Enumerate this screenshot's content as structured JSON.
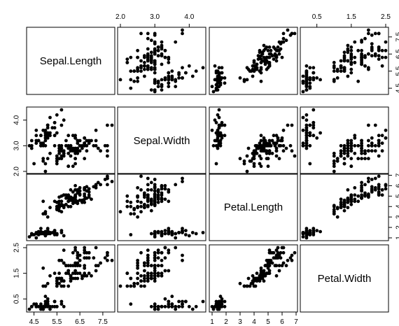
{
  "chart_data": {
    "type": "scatter",
    "plot_type": "scatterplot-matrix",
    "point_color": "#000000",
    "variables": [
      {
        "name": "Sepal.Length",
        "range": [
          4.3,
          7.9
        ]
      },
      {
        "name": "Sepal.Width",
        "range": [
          2.0,
          4.4
        ]
      },
      {
        "name": "Petal.Length",
        "range": [
          1.0,
          6.9
        ]
      },
      {
        "name": "Petal.Width",
        "range": [
          0.1,
          2.5
        ]
      }
    ],
    "axis_ticks": [
      {
        "side": "bottom",
        "panel": 0,
        "labels": [
          "4.5",
          "5.5",
          "6.5",
          "7.5"
        ]
      },
      {
        "side": "top",
        "panel": 1,
        "labels": [
          "2.0",
          "3.0",
          "4.0"
        ]
      },
      {
        "side": "bottom",
        "panel": 2,
        "labels": [
          "1",
          "2",
          "3",
          "4",
          "5",
          "6",
          "7"
        ]
      },
      {
        "side": "top",
        "panel": 3,
        "labels": [
          "0.5",
          "1.5",
          "2.5"
        ]
      },
      {
        "side": "left",
        "panel": 1,
        "labels": [
          "2.0",
          "3.0",
          "4.0"
        ]
      },
      {
        "side": "right",
        "panel": 0,
        "labels": [
          "4.5",
          "5.5",
          "6.5",
          "7.5"
        ]
      },
      {
        "side": "left",
        "panel": 3,
        "labels": [
          "0.5",
          "1.5",
          "2.5"
        ]
      },
      {
        "side": "right",
        "panel": 2,
        "labels": [
          "1",
          "2",
          "3",
          "4",
          "5",
          "6",
          "7"
        ]
      }
    ],
    "observations": [
      [
        5.1,
        3.5,
        1.4,
        0.2
      ],
      [
        4.9,
        3.0,
        1.4,
        0.2
      ],
      [
        4.7,
        3.2,
        1.3,
        0.2
      ],
      [
        4.6,
        3.1,
        1.5,
        0.2
      ],
      [
        5.0,
        3.6,
        1.4,
        0.2
      ],
      [
        5.4,
        3.9,
        1.7,
        0.4
      ],
      [
        4.6,
        3.4,
        1.4,
        0.3
      ],
      [
        5.0,
        3.4,
        1.5,
        0.2
      ],
      [
        4.4,
        2.9,
        1.4,
        0.2
      ],
      [
        4.9,
        3.1,
        1.5,
        0.1
      ],
      [
        5.4,
        3.7,
        1.5,
        0.2
      ],
      [
        4.8,
        3.4,
        1.6,
        0.2
      ],
      [
        4.8,
        3.0,
        1.4,
        0.1
      ],
      [
        4.3,
        3.0,
        1.1,
        0.1
      ],
      [
        5.8,
        4.0,
        1.2,
        0.2
      ],
      [
        5.7,
        4.4,
        1.5,
        0.4
      ],
      [
        5.4,
        3.9,
        1.3,
        0.4
      ],
      [
        5.1,
        3.5,
        1.4,
        0.3
      ],
      [
        5.7,
        3.8,
        1.7,
        0.3
      ],
      [
        5.1,
        3.8,
        1.5,
        0.3
      ],
      [
        5.4,
        3.4,
        1.7,
        0.2
      ],
      [
        5.1,
        3.7,
        1.5,
        0.4
      ],
      [
        4.6,
        3.6,
        1.0,
        0.2
      ],
      [
        5.1,
        3.3,
        1.7,
        0.5
      ],
      [
        4.8,
        3.4,
        1.9,
        0.2
      ],
      [
        5.0,
        3.0,
        1.6,
        0.2
      ],
      [
        5.0,
        3.4,
        1.6,
        0.4
      ],
      [
        5.2,
        3.5,
        1.5,
        0.2
      ],
      [
        5.2,
        3.4,
        1.4,
        0.2
      ],
      [
        4.7,
        3.2,
        1.6,
        0.2
      ],
      [
        4.8,
        3.1,
        1.6,
        0.2
      ],
      [
        5.4,
        3.4,
        1.5,
        0.4
      ],
      [
        5.2,
        4.1,
        1.5,
        0.1
      ],
      [
        5.5,
        4.2,
        1.4,
        0.2
      ],
      [
        4.9,
        3.1,
        1.5,
        0.2
      ],
      [
        5.0,
        3.2,
        1.2,
        0.2
      ],
      [
        5.5,
        3.5,
        1.3,
        0.2
      ],
      [
        4.9,
        3.6,
        1.4,
        0.1
      ],
      [
        4.4,
        3.0,
        1.3,
        0.2
      ],
      [
        5.1,
        3.4,
        1.5,
        0.2
      ],
      [
        5.0,
        3.5,
        1.3,
        0.3
      ],
      [
        4.5,
        2.3,
        1.3,
        0.3
      ],
      [
        4.4,
        3.2,
        1.3,
        0.2
      ],
      [
        5.0,
        3.5,
        1.6,
        0.6
      ],
      [
        5.1,
        3.8,
        1.9,
        0.4
      ],
      [
        4.8,
        3.0,
        1.4,
        0.3
      ],
      [
        5.1,
        3.8,
        1.6,
        0.2
      ],
      [
        4.6,
        3.2,
        1.4,
        0.2
      ],
      [
        5.3,
        3.7,
        1.5,
        0.2
      ],
      [
        5.0,
        3.3,
        1.4,
        0.2
      ],
      [
        7.0,
        3.2,
        4.7,
        1.4
      ],
      [
        6.4,
        3.2,
        4.5,
        1.5
      ],
      [
        6.9,
        3.1,
        4.9,
        1.5
      ],
      [
        5.5,
        2.3,
        4.0,
        1.3
      ],
      [
        6.5,
        2.8,
        4.6,
        1.5
      ],
      [
        5.7,
        2.8,
        4.5,
        1.3
      ],
      [
        6.3,
        3.3,
        4.7,
        1.6
      ],
      [
        4.9,
        2.4,
        3.3,
        1.0
      ],
      [
        6.6,
        2.9,
        4.6,
        1.3
      ],
      [
        5.2,
        2.7,
        3.9,
        1.4
      ],
      [
        5.0,
        2.0,
        3.5,
        1.0
      ],
      [
        5.9,
        3.0,
        4.2,
        1.5
      ],
      [
        6.0,
        2.2,
        4.0,
        1.0
      ],
      [
        6.1,
        2.9,
        4.7,
        1.4
      ],
      [
        5.6,
        2.9,
        3.6,
        1.3
      ],
      [
        6.7,
        3.1,
        4.4,
        1.4
      ],
      [
        5.6,
        3.0,
        4.5,
        1.5
      ],
      [
        5.8,
        2.7,
        4.1,
        1.0
      ],
      [
        6.2,
        2.2,
        4.5,
        1.5
      ],
      [
        5.6,
        2.5,
        3.9,
        1.1
      ],
      [
        5.9,
        3.2,
        4.8,
        1.8
      ],
      [
        6.1,
        2.8,
        4.0,
        1.3
      ],
      [
        6.3,
        2.5,
        4.9,
        1.5
      ],
      [
        6.1,
        2.8,
        4.7,
        1.2
      ],
      [
        6.4,
        2.9,
        4.3,
        1.3
      ],
      [
        6.6,
        3.0,
        4.4,
        1.4
      ],
      [
        6.8,
        2.8,
        4.8,
        1.4
      ],
      [
        6.7,
        3.0,
        5.0,
        1.7
      ],
      [
        6.0,
        2.9,
        4.5,
        1.5
      ],
      [
        5.7,
        2.6,
        3.5,
        1.0
      ],
      [
        5.5,
        2.4,
        3.8,
        1.1
      ],
      [
        5.5,
        2.4,
        3.7,
        1.0
      ],
      [
        5.8,
        2.7,
        3.9,
        1.2
      ],
      [
        6.0,
        2.7,
        5.1,
        1.6
      ],
      [
        5.4,
        3.0,
        4.5,
        1.5
      ],
      [
        6.0,
        3.4,
        4.5,
        1.6
      ],
      [
        6.7,
        3.1,
        4.7,
        1.5
      ],
      [
        6.3,
        2.3,
        4.4,
        1.3
      ],
      [
        5.6,
        3.0,
        4.1,
        1.3
      ],
      [
        5.5,
        2.5,
        4.0,
        1.3
      ],
      [
        5.5,
        2.6,
        4.4,
        1.2
      ],
      [
        6.1,
        3.0,
        4.6,
        1.4
      ],
      [
        5.8,
        2.6,
        4.0,
        1.2
      ],
      [
        5.0,
        2.3,
        3.3,
        1.0
      ],
      [
        5.6,
        2.7,
        4.2,
        1.3
      ],
      [
        5.7,
        3.0,
        4.2,
        1.2
      ],
      [
        5.7,
        2.9,
        4.2,
        1.3
      ],
      [
        6.2,
        2.9,
        4.3,
        1.3
      ],
      [
        5.1,
        2.5,
        3.0,
        1.1
      ],
      [
        5.7,
        2.8,
        4.1,
        1.3
      ],
      [
        6.3,
        3.3,
        6.0,
        2.5
      ],
      [
        5.8,
        2.7,
        5.1,
        1.9
      ],
      [
        7.1,
        3.0,
        5.9,
        2.1
      ],
      [
        6.3,
        2.9,
        5.6,
        1.8
      ],
      [
        6.5,
        3.0,
        5.8,
        2.2
      ],
      [
        7.6,
        3.0,
        6.6,
        2.1
      ],
      [
        4.9,
        2.5,
        4.5,
        1.7
      ],
      [
        7.3,
        2.9,
        6.3,
        1.8
      ],
      [
        6.7,
        2.5,
        5.8,
        1.8
      ],
      [
        7.2,
        3.6,
        6.1,
        2.5
      ],
      [
        6.5,
        3.2,
        5.1,
        2.0
      ],
      [
        6.4,
        2.7,
        5.3,
        1.9
      ],
      [
        6.8,
        3.0,
        5.5,
        2.1
      ],
      [
        5.7,
        2.5,
        5.0,
        2.0
      ],
      [
        5.8,
        2.8,
        5.1,
        2.4
      ],
      [
        6.4,
        3.2,
        5.3,
        2.3
      ],
      [
        6.5,
        3.0,
        5.5,
        1.8
      ],
      [
        7.7,
        3.8,
        6.7,
        2.2
      ],
      [
        7.7,
        2.6,
        6.9,
        2.3
      ],
      [
        6.0,
        2.2,
        5.0,
        1.5
      ],
      [
        6.9,
        3.2,
        5.7,
        2.3
      ],
      [
        5.6,
        2.8,
        4.9,
        2.0
      ],
      [
        7.7,
        2.8,
        6.7,
        2.0
      ],
      [
        6.3,
        2.7,
        4.9,
        1.8
      ],
      [
        6.7,
        3.3,
        5.7,
        2.1
      ],
      [
        7.2,
        3.2,
        6.0,
        1.8
      ],
      [
        6.2,
        2.8,
        4.8,
        1.8
      ],
      [
        6.1,
        3.0,
        4.9,
        1.8
      ],
      [
        6.4,
        2.8,
        5.6,
        2.1
      ],
      [
        7.2,
        3.0,
        5.8,
        1.6
      ],
      [
        7.4,
        2.8,
        6.1,
        1.9
      ],
      [
        7.9,
        3.8,
        6.4,
        2.0
      ],
      [
        6.4,
        2.8,
        5.6,
        2.2
      ],
      [
        6.3,
        2.8,
        5.1,
        1.5
      ],
      [
        6.1,
        2.6,
        5.6,
        1.4
      ],
      [
        7.7,
        3.0,
        6.1,
        2.3
      ],
      [
        6.3,
        3.4,
        5.6,
        2.4
      ],
      [
        6.4,
        3.1,
        5.5,
        1.8
      ],
      [
        6.0,
        3.0,
        4.8,
        1.8
      ],
      [
        6.9,
        3.1,
        5.4,
        2.1
      ],
      [
        6.7,
        3.1,
        5.6,
        2.4
      ],
      [
        6.9,
        3.1,
        5.1,
        2.3
      ],
      [
        5.8,
        2.7,
        5.1,
        1.9
      ],
      [
        6.8,
        3.2,
        5.9,
        2.3
      ],
      [
        6.7,
        3.3,
        5.7,
        2.5
      ],
      [
        6.7,
        3.0,
        5.2,
        2.3
      ],
      [
        6.3,
        2.5,
        5.0,
        1.9
      ],
      [
        6.5,
        3.0,
        5.2,
        2.0
      ],
      [
        6.2,
        3.4,
        5.4,
        2.3
      ],
      [
        5.9,
        3.0,
        5.1,
        1.8
      ]
    ]
  }
}
